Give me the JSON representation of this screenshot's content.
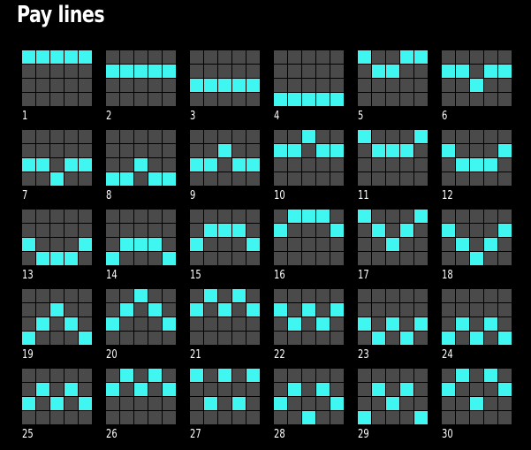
{
  "title": "Pay lines",
  "colors": {
    "background": "#000000",
    "cell_off": "#4a4a4a",
    "cell_on": "#3ff6f1",
    "text": "#ffffff"
  },
  "grid": {
    "rows": 4,
    "cols": 5
  },
  "paylines": [
    {
      "label": "1",
      "rows": [
        0,
        0,
        0,
        0,
        0
      ]
    },
    {
      "label": "2",
      "rows": [
        1,
        1,
        1,
        1,
        1
      ]
    },
    {
      "label": "3",
      "rows": [
        2,
        2,
        2,
        2,
        2
      ]
    },
    {
      "label": "4",
      "rows": [
        3,
        3,
        3,
        3,
        3
      ]
    },
    {
      "label": "5",
      "rows": [
        0,
        1,
        1,
        0,
        0
      ]
    },
    {
      "label": "6",
      "rows": [
        1,
        1,
        2,
        1,
        1
      ]
    },
    {
      "label": "7",
      "rows": [
        2,
        2,
        3,
        2,
        2
      ]
    },
    {
      "label": "8",
      "rows": [
        3,
        3,
        2,
        3,
        3
      ]
    },
    {
      "label": "9",
      "rows": [
        2,
        2,
        1,
        2,
        2
      ]
    },
    {
      "label": "10",
      "rows": [
        1,
        1,
        0,
        1,
        1
      ]
    },
    {
      "label": "11",
      "rows": [
        0,
        1,
        1,
        1,
        0
      ]
    },
    {
      "label": "12",
      "rows": [
        1,
        2,
        2,
        2,
        1
      ]
    },
    {
      "label": "13",
      "rows": [
        2,
        3,
        3,
        3,
        2
      ]
    },
    {
      "label": "14",
      "rows": [
        3,
        2,
        2,
        2,
        3
      ]
    },
    {
      "label": "15",
      "rows": [
        2,
        1,
        1,
        1,
        2
      ]
    },
    {
      "label": "16",
      "rows": [
        1,
        0,
        0,
        0,
        1
      ]
    },
    {
      "label": "17",
      "rows": [
        0,
        1,
        2,
        1,
        0
      ]
    },
    {
      "label": "18",
      "rows": [
        1,
        2,
        3,
        2,
        1
      ]
    },
    {
      "label": "19",
      "rows": [
        3,
        2,
        1,
        2,
        3
      ]
    },
    {
      "label": "20",
      "rows": [
        2,
        1,
        0,
        1,
        2
      ]
    },
    {
      "label": "21",
      "rows": [
        1,
        0,
        1,
        0,
        1
      ]
    },
    {
      "label": "22",
      "rows": [
        1,
        2,
        1,
        2,
        1
      ]
    },
    {
      "label": "23",
      "rows": [
        2,
        3,
        2,
        3,
        2
      ]
    },
    {
      "label": "24",
      "rows": [
        3,
        2,
        3,
        2,
        3
      ]
    },
    {
      "label": "25",
      "rows": [
        2,
        1,
        2,
        1,
        2
      ]
    },
    {
      "label": "26",
      "rows": [
        1,
        0,
        1,
        0,
        1
      ]
    },
    {
      "label": "27",
      "rows": [
        0,
        2,
        0,
        2,
        0
      ]
    },
    {
      "label": "28",
      "rows": [
        2,
        1,
        3,
        1,
        2
      ]
    },
    {
      "label": "29",
      "rows": [
        3,
        1,
        2,
        1,
        3
      ]
    },
    {
      "label": "30",
      "rows": [
        1,
        0,
        2,
        0,
        1
      ]
    }
  ]
}
